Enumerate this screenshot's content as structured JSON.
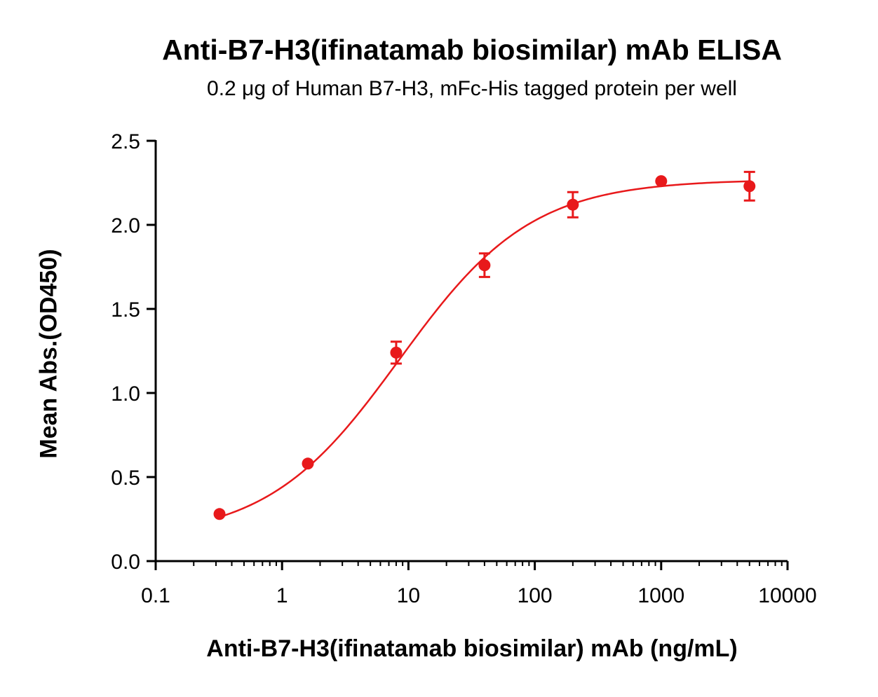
{
  "chart_data": {
    "type": "scatter",
    "title": "Anti-B7-H3(ifinatamab biosimilar) mAb ELISA",
    "subtitle": "0.2 μg of Human B7-H3, mFc-His tagged protein per well",
    "xlabel": "Anti-B7-H3(ifinatamab biosimilar) mAb (ng/mL)",
    "ylabel": "Mean Abs.(OD450)",
    "x_scale": "log",
    "xlim": [
      0.1,
      10000
    ],
    "ylim": [
      0.0,
      2.5
    ],
    "x_ticks": [
      "0.1",
      "1",
      "10",
      "100",
      "1000",
      "10000"
    ],
    "y_ticks": [
      "0.0",
      "0.5",
      "1.0",
      "1.5",
      "2.0",
      "2.5"
    ],
    "grid": false,
    "legend": "none",
    "series": [
      {
        "color": "#e8191b",
        "points": [
          {
            "x": 0.32,
            "y": 0.28,
            "err": 0.0
          },
          {
            "x": 1.6,
            "y": 0.58,
            "err": 0.0
          },
          {
            "x": 8,
            "y": 1.24,
            "err": 0.065
          },
          {
            "x": 40,
            "y": 1.76,
            "err": 0.07
          },
          {
            "x": 200,
            "y": 2.12,
            "err": 0.075
          },
          {
            "x": 1000,
            "y": 2.26,
            "err": 0.0
          },
          {
            "x": 5000,
            "y": 2.23,
            "err": 0.085
          }
        ],
        "fit": {
          "model": "4PL",
          "bottom": 0.13,
          "top": 2.27,
          "ec50": 8.5,
          "hill": 0.83
        }
      }
    ]
  }
}
